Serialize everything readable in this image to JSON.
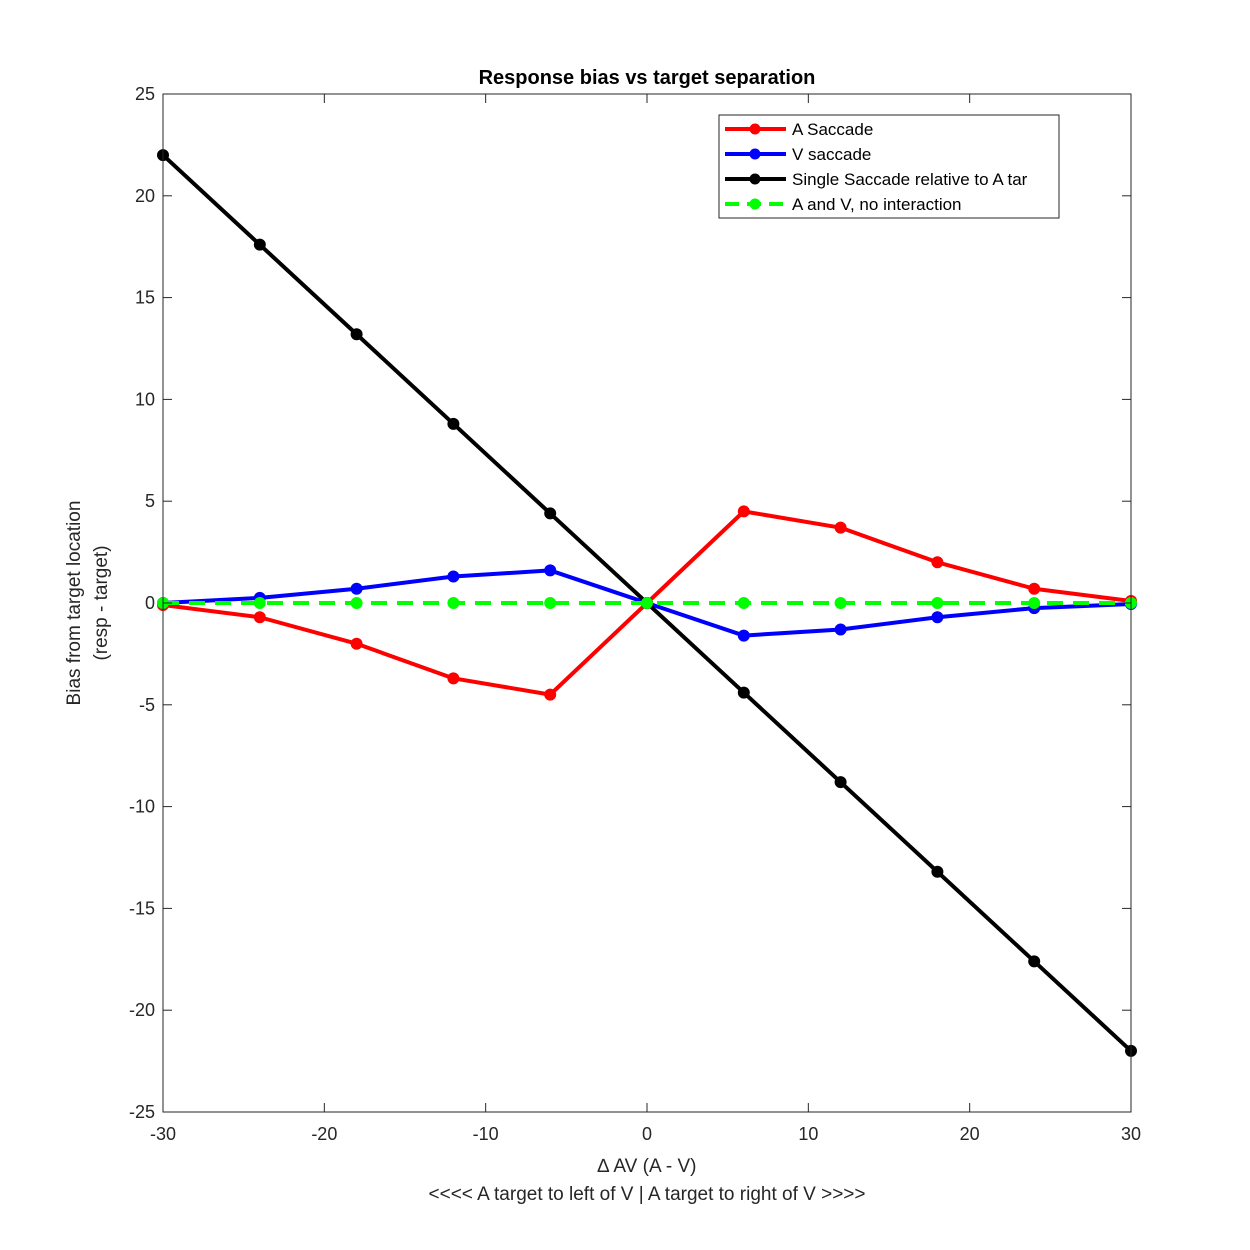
{
  "chart_data": {
    "type": "line",
    "title": "Response bias vs target separation",
    "xlabel": "∆ AV (A - V)",
    "xlabel_sub": "<<<< A target to left of V | A target to right of V >>>>",
    "ylabel": "Bias from target location",
    "ylabel_sub": "(resp - target)",
    "xlim": [
      -30,
      30
    ],
    "ylim": [
      -25,
      25
    ],
    "xticks": [
      -30,
      -20,
      -10,
      0,
      10,
      20,
      30
    ],
    "yticks": [
      -25,
      -20,
      -15,
      -10,
      -5,
      0,
      5,
      10,
      15,
      20,
      25
    ],
    "grid": false,
    "legend_position": "top-right",
    "x": [
      -30,
      -24,
      -18,
      -12,
      -6,
      0,
      6,
      12,
      18,
      24,
      30
    ],
    "series": [
      {
        "name": "A Saccade",
        "color": "#ff0000",
        "dash": "solid",
        "values": [
          -0.1,
          -0.7,
          -2.0,
          -3.7,
          -4.5,
          0.0,
          4.5,
          3.7,
          2.0,
          0.7,
          0.1
        ]
      },
      {
        "name": "V saccade",
        "color": "#0000ff",
        "dash": "solid",
        "values": [
          0.0,
          0.25,
          0.7,
          1.3,
          1.6,
          0.0,
          -1.6,
          -1.3,
          -0.7,
          -0.25,
          -0.05
        ]
      },
      {
        "name": "Single Saccade relative to A tar",
        "color": "#000000",
        "dash": "solid",
        "values": [
          22.0,
          17.6,
          13.2,
          8.8,
          4.4,
          0.0,
          -4.4,
          -8.8,
          -13.2,
          -17.6,
          -22.0
        ]
      },
      {
        "name": "A and V, no interaction",
        "color": "#00ff00",
        "dash": "dashed",
        "values": [
          0,
          0,
          0,
          0,
          0,
          0,
          0,
          0,
          0,
          0,
          0
        ]
      }
    ]
  }
}
